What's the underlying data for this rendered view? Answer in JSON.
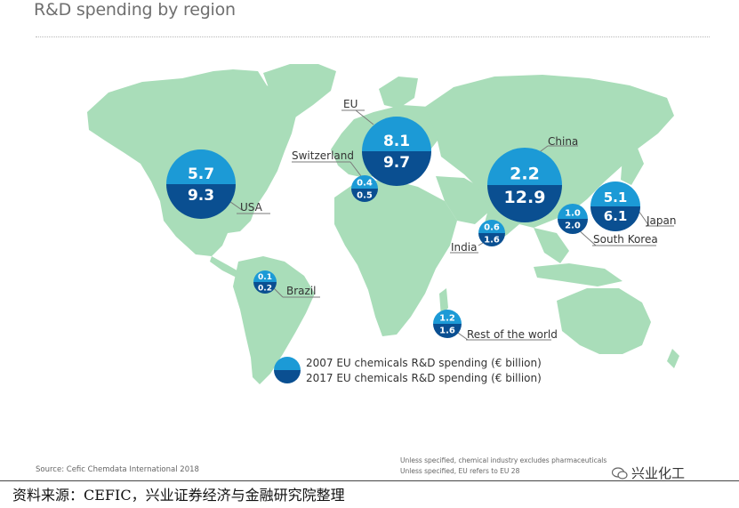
{
  "title": "R&D spending by region",
  "regions": [
    {
      "id": "usa",
      "label": "USA",
      "v2007": "5.7",
      "v2017": "9.3"
    },
    {
      "id": "eu",
      "label": "EU",
      "v2007": "8.1",
      "v2017": "9.7"
    },
    {
      "id": "switzerland",
      "label": "Switzerland",
      "v2007": "0.4",
      "v2017": "0.5"
    },
    {
      "id": "china",
      "label": "China",
      "v2007": "2.2",
      "v2017": "12.9"
    },
    {
      "id": "india",
      "label": "India",
      "v2007": "0.6",
      "v2017": "1.6"
    },
    {
      "id": "japan",
      "label": "Japan",
      "v2007": "5.1",
      "v2017": "6.1"
    },
    {
      "id": "south-korea",
      "label": "South Korea",
      "v2007": "1.0",
      "v2017": "2.0"
    },
    {
      "id": "brazil",
      "label": "Brazil",
      "v2007": "0.1",
      "v2017": "0.2"
    },
    {
      "id": "rest-of-world",
      "label": "Rest of the world",
      "v2007": "1.2",
      "v2017": "1.6"
    }
  ],
  "legend": {
    "item2007": "2007 EU chemicals R&D spending (€ billion)",
    "item2017": "2017 EU chemicals R&D spending (€ billion)"
  },
  "colors": {
    "light": "#1c9ad6",
    "dark": "#0a4f91",
    "land": "#a9ddb9",
    "line": "#7a7a7a"
  },
  "source": "Source: Cefic Chemdata International 2018",
  "notes": [
    "Unless specified, chemical industry excludes pharmaceuticals",
    "Unless specified, EU refers to EU 28"
  ],
  "brand": "兴业化工",
  "footer": "资料来源：CEFIC，兴业证券经济与金融研究院整理"
}
